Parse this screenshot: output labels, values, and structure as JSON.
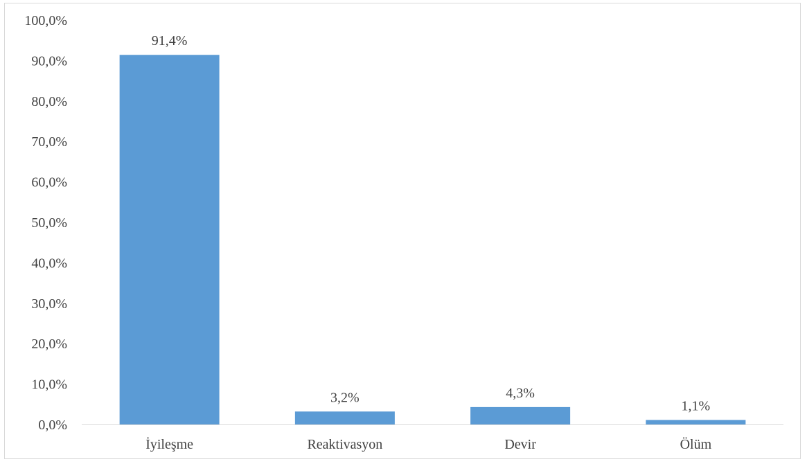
{
  "chart_data": {
    "type": "bar",
    "categories": [
      "İyileşme",
      "Reaktivasyon",
      "Devir",
      "Ölüm"
    ],
    "values": [
      91.4,
      3.2,
      4.3,
      1.1
    ],
    "data_labels": [
      "91,4%",
      "3,2%",
      "4,3%",
      "1,1%"
    ],
    "ylim": [
      0,
      100
    ],
    "y_ticks": [
      0,
      10,
      20,
      30,
      40,
      50,
      60,
      70,
      80,
      90,
      100
    ],
    "y_tick_labels": [
      "0,0%",
      "10,0%",
      "20,0%",
      "30,0%",
      "40,0%",
      "50,0%",
      "60,0%",
      "70,0%",
      "80,0%",
      "90,0%",
      "100,0%"
    ],
    "title": "",
    "xlabel": "",
    "ylabel": "",
    "grid": false,
    "legend": "none",
    "bar_color": "#5b9bd5",
    "axis_color": "#d9d9d9"
  }
}
